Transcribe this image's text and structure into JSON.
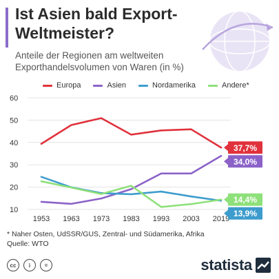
{
  "header": {
    "title": "Ist Asien bald Export-Weltmeister?",
    "subtitle": "Anteile der Regionen am weltweiten Exporthandelsvolumen von Waren (in %)"
  },
  "footnote": {
    "note": "* Naher Osten, UdSSR/GUS, Zentral- und Südamerika, Afrika",
    "source": "Quelle: WTO"
  },
  "brand": {
    "name": "statista"
  },
  "icons": {
    "globe": "globe-icon",
    "cc": [
      "cc-icon",
      "by-icon",
      "nd-icon"
    ]
  },
  "chart_data": {
    "type": "line",
    "title": "",
    "xlabel": "",
    "ylabel": "",
    "categories": [
      "1953",
      "1963",
      "1973",
      "1983",
      "1993",
      "2003",
      "2019"
    ],
    "ylim": [
      10,
      60
    ],
    "yticks": [
      10,
      20,
      30,
      40,
      50,
      60
    ],
    "grid": true,
    "legend_position": "top",
    "series": [
      {
        "name": "Europa",
        "color": "#e0323c",
        "values": [
          39.4,
          47.8,
          50.9,
          43.5,
          45.4,
          45.9,
          37.7
        ],
        "end_label": "37,7%"
      },
      {
        "name": "Asien",
        "color": "#8b62c8",
        "values": [
          13.4,
          12.5,
          14.9,
          19.1,
          26.1,
          26.1,
          34.0
        ],
        "end_label": "34,0%"
      },
      {
        "name": "Nordamerika",
        "color": "#3d9ccd",
        "values": [
          24.6,
          19.9,
          17.3,
          16.8,
          18.0,
          15.8,
          13.9
        ],
        "end_label": "13,9%"
      },
      {
        "name": "Andere*",
        "color": "#8ee07a",
        "values": [
          22.6,
          19.8,
          16.9,
          20.6,
          11.1,
          12.4,
          14.4
        ],
        "end_label": "14,4%"
      }
    ]
  }
}
